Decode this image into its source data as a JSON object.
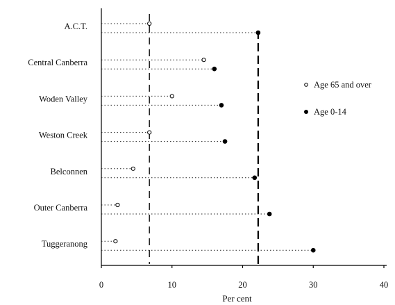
{
  "chart_data": {
    "type": "scatter",
    "categories": [
      "A.C.T.",
      "Central Canberra",
      "Woden Valley",
      "Weston Creek",
      "Belconnen",
      "Outer Canberra",
      "Tuggeranong"
    ],
    "series": [
      {
        "name": "Age 65 and over",
        "marker": "open-circle",
        "values": [
          6.8,
          14.5,
          10.0,
          6.8,
          4.5,
          2.3,
          2.0
        ]
      },
      {
        "name": "Age 0-14",
        "marker": "filled-circle",
        "values": [
          22.2,
          16.0,
          17.0,
          17.5,
          21.7,
          23.8,
          30.0
        ]
      }
    ],
    "reference_lines": [
      {
        "series": "Age 65 and over",
        "value": 6.8
      },
      {
        "series": "Age 0-14",
        "value": 22.2
      }
    ],
    "xlabel": "Per cent",
    "xlim": [
      0,
      40
    ],
    "xticks": [
      "0",
      "10",
      "20",
      "30",
      "40"
    ],
    "legend_position": "right",
    "grid": false
  }
}
